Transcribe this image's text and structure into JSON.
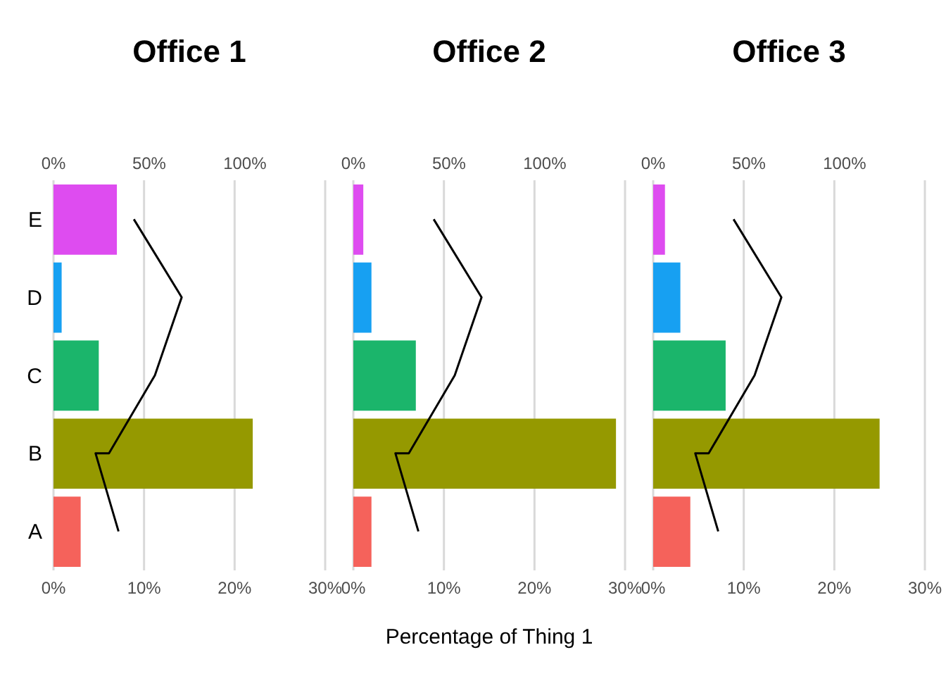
{
  "chart_data": [
    {
      "type": "bar",
      "orientation": "horizontal",
      "title": "Office 1",
      "categories": [
        "E",
        "D",
        "C",
        "B",
        "A"
      ],
      "grid": "x",
      "marker": "none",
      "xlim": [
        0,
        30
      ],
      "xticks": [
        {
          "value": 0,
          "label": "0%"
        },
        {
          "value": 10,
          "label": "10%"
        },
        {
          "value": 20,
          "label": "20%"
        },
        {
          "value": 30,
          "label": "30%"
        }
      ],
      "x2lim": [
        0,
        142
      ],
      "x2ticks": [
        {
          "value": 0,
          "label": "0%"
        },
        {
          "value": 50,
          "label": "50%"
        },
        {
          "value": 100,
          "label": "100%"
        }
      ],
      "series": [
        {
          "type": "bar",
          "colors": [
            "#de4cf0",
            "#17a0f2",
            "#1bb56b",
            "#959900",
            "#f5625b"
          ],
          "values": [
            7.0,
            0.9,
            5.0,
            22.0,
            3.0
          ]
        },
        {
          "type": "line",
          "axis": "x2",
          "color": "#000000",
          "x": [
            "A",
            "B",
            "B",
            "C",
            "D",
            "E"
          ],
          "values": [
            34,
            22,
            29,
            53,
            67,
            42
          ]
        }
      ]
    },
    {
      "type": "bar",
      "orientation": "horizontal",
      "title": "Office 2",
      "xlabel": "Percentage of Thing 1",
      "tick_labels": "x",
      "categories": [
        "E",
        "D",
        "C",
        "B",
        "A"
      ],
      "grid": "x",
      "marker": "none",
      "xlim": [
        0,
        30
      ],
      "xticks": [
        {
          "value": 0,
          "label": "0%"
        },
        {
          "value": 10,
          "label": "10%"
        },
        {
          "value": 20,
          "label": "20%"
        },
        {
          "value": 30,
          "label": "30%"
        }
      ],
      "x2lim": [
        0,
        142
      ],
      "x2ticks": [
        {
          "value": 0,
          "label": "0%"
        },
        {
          "value": 50,
          "label": "50%"
        },
        {
          "value": 100,
          "label": "100%"
        }
      ],
      "series": [
        {
          "type": "bar",
          "colors": [
            "#de4cf0",
            "#17a0f2",
            "#1bb56b",
            "#959900",
            "#f5625b"
          ],
          "values": [
            1.1,
            2.0,
            6.9,
            29.0,
            2.0
          ]
        },
        {
          "type": "line",
          "axis": "x2",
          "color": "#000000",
          "x": [
            "A",
            "B",
            "B",
            "C",
            "D",
            "E"
          ],
          "values": [
            34,
            22,
            29,
            53,
            67,
            42
          ]
        }
      ]
    },
    {
      "type": "bar",
      "orientation": "horizontal",
      "title": "Office 3",
      "tick_labels": "x",
      "categories": [
        "E",
        "D",
        "C",
        "B",
        "A"
      ],
      "grid": "x",
      "marker": "none",
      "xlim": [
        0,
        30
      ],
      "xticks": [
        {
          "value": 0,
          "label": "0%"
        },
        {
          "value": 10,
          "label": "10%"
        },
        {
          "value": 20,
          "label": "20%"
        },
        {
          "value": 30,
          "label": "30%"
        }
      ],
      "x2lim": [
        0,
        142
      ],
      "x2ticks": [
        {
          "value": 0,
          "label": "0%"
        },
        {
          "value": 50,
          "label": "50%"
        },
        {
          "value": 100,
          "label": "100%"
        }
      ],
      "series": [
        {
          "type": "bar",
          "colors": [
            "#de4cf0",
            "#17a0f2",
            "#1bb56b",
            "#959900",
            "#f5625b"
          ],
          "values": [
            1.3,
            3.0,
            8.0,
            25.0,
            4.1
          ]
        },
        {
          "type": "line",
          "axis": "x2",
          "color": "#000000",
          "x": [
            "A",
            "B",
            "B",
            "C",
            "D",
            "E"
          ],
          "values": [
            34,
            22,
            29,
            53,
            67,
            42
          ]
        }
      ]
    }
  ]
}
